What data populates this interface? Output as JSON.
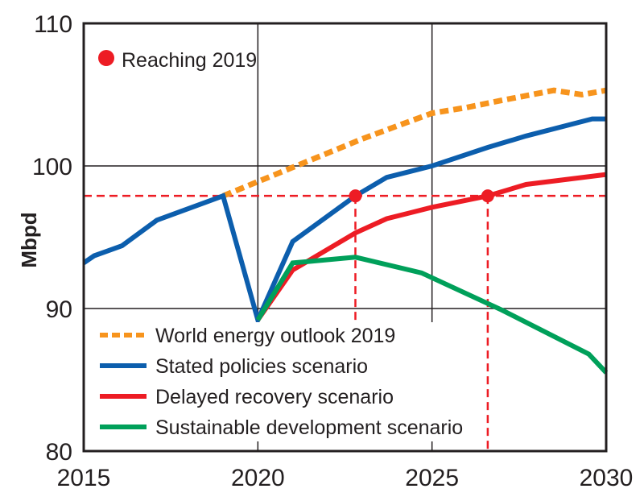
{
  "chart_data": {
    "type": "line",
    "title": "",
    "xlabel": "",
    "ylabel": "Mbpd",
    "xlim": [
      2015,
      2030
    ],
    "ylim": [
      80,
      110
    ],
    "xticks": [
      2015,
      2020,
      2025,
      2030
    ],
    "xtick_labels": [
      "2015",
      "2020",
      "2025",
      "2030"
    ],
    "yticks": [
      80,
      90,
      100,
      110
    ],
    "ytick_labels": [
      "80",
      "90",
      "100",
      "110"
    ],
    "grid": true,
    "legend_position": "bottom-left",
    "series": [
      {
        "name": "World energy outlook 2019",
        "color": "#f7941d",
        "style": "dashed",
        "points": [
          [
            2019,
            97.9
          ],
          [
            2020,
            98.9
          ],
          [
            2021,
            99.9
          ],
          [
            2022,
            100.9
          ],
          [
            2023,
            101.9
          ],
          [
            2024,
            102.8
          ],
          [
            2025,
            103.7
          ],
          [
            2026,
            104.1
          ],
          [
            2027,
            104.6
          ],
          [
            2028.5,
            105.3
          ],
          [
            2029.3,
            105.0
          ],
          [
            2030,
            105.3
          ]
        ]
      },
      {
        "name": "Stated policies scenario",
        "color": "#0c5ead",
        "style": "solid",
        "points": [
          [
            2015,
            93.2
          ],
          [
            2015.3,
            93.7
          ],
          [
            2016.1,
            94.4
          ],
          [
            2017.1,
            96.2
          ],
          [
            2019,
            97.9
          ],
          [
            2020,
            89.2
          ],
          [
            2021,
            94.7
          ],
          [
            2022.8,
            97.9
          ],
          [
            2023.7,
            99.2
          ],
          [
            2025,
            100.0
          ],
          [
            2026.6,
            101.3
          ],
          [
            2027.7,
            102.1
          ],
          [
            2029.6,
            103.3
          ],
          [
            2030,
            103.3
          ]
        ]
      },
      {
        "name": "Delayed recovery scenario",
        "color": "#ed1c24",
        "style": "solid",
        "points": [
          [
            2020,
            89.2
          ],
          [
            2021,
            92.7
          ],
          [
            2022.8,
            95.3
          ],
          [
            2023.7,
            96.3
          ],
          [
            2025,
            97.1
          ],
          [
            2026.6,
            97.9
          ],
          [
            2027.7,
            98.7
          ],
          [
            2030,
            99.4
          ]
        ]
      },
      {
        "name": "Sustainable development scenario",
        "color": "#00a05a",
        "style": "solid",
        "points": [
          [
            2020,
            89.2
          ],
          [
            2021,
            93.2
          ],
          [
            2022.8,
            93.6
          ],
          [
            2024.7,
            92.5
          ],
          [
            2027,
            89.9
          ],
          [
            2029.5,
            86.8
          ],
          [
            2030,
            85.5
          ]
        ]
      }
    ],
    "annotations": {
      "marker_label": "Reaching 2019",
      "marker_color": "#ed1c24",
      "reference_level": 97.9,
      "reaching_points": [
        [
          2022.8,
          97.9
        ],
        [
          2026.6,
          97.9
        ]
      ]
    }
  }
}
